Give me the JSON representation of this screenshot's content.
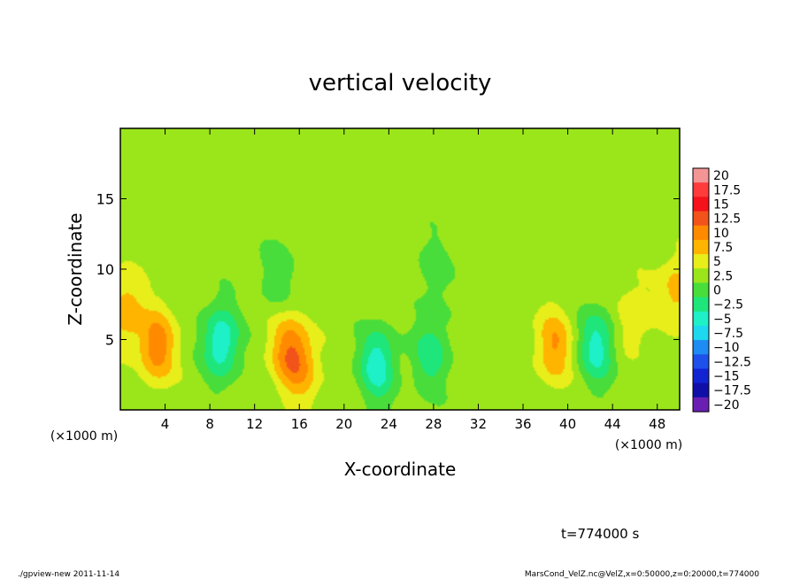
{
  "chart_data": {
    "type": "heatmap",
    "title": "vertical velocity",
    "xlabel": "X-coordinate",
    "ylabel": "Z-coordinate",
    "x_unit_left": "(×1000 m)",
    "x_unit_right": "(×1000 m)",
    "xlim": [
      0,
      50
    ],
    "ylim": [
      0,
      20
    ],
    "x_ticks": [
      "4",
      "8",
      "12",
      "16",
      "20",
      "24",
      "28",
      "32",
      "36",
      "40",
      "44",
      "48"
    ],
    "y_ticks": [
      "5",
      "10",
      "15"
    ],
    "colorbar": {
      "levels": [
        "20",
        "17.5",
        "15",
        "12.5",
        "10",
        "7.5",
        "5",
        "2.5",
        "0",
        "-2.5",
        "-5",
        "-7.5",
        "-10",
        "-12.5",
        "-15",
        "-17.5",
        "-20"
      ],
      "colors": [
        "#f39595",
        "#ff3b3b",
        "#f5121b",
        "#f2531b",
        "#ff8a00",
        "#ffb400",
        "#e8ee1a",
        "#9be61a",
        "#48dd3a",
        "#1ee67a",
        "#1ef0c8",
        "#1ed8f0",
        "#1e8cf2",
        "#1e50ea",
        "#1224d2",
        "#1010a8",
        "#6a1fb2"
      ]
    },
    "annotation_time": "t=774000 s",
    "footer_left": "./gpview-new  2011-11-14",
    "footer_right": "MarsCond_VelZ.nc@VelZ,x=0:50000,z=0:20000,t=774000",
    "features": [
      {
        "x": 0.5,
        "z": 7.0,
        "w": 5.5
      },
      {
        "x": 49.8,
        "z": 8.5,
        "w": 5.0
      },
      {
        "x": 3.3,
        "z": 4.5,
        "w": 8.0
      },
      {
        "x": 9.0,
        "z": 4.8,
        "w": -8.5
      },
      {
        "x": 15.0,
        "z": 4.3,
        "w": 7.0
      },
      {
        "x": 16.3,
        "z": 3.0,
        "w": 5.0
      },
      {
        "x": 23.0,
        "z": 3.2,
        "w": -8.0
      },
      {
        "x": 27.8,
        "z": 4.0,
        "w": -5.5
      },
      {
        "x": 38.8,
        "z": 4.5,
        "w": 6.5
      },
      {
        "x": 42.6,
        "z": 4.5,
        "w": -7.5
      },
      {
        "x": 45.8,
        "z": 6.5,
        "w": 3.5
      },
      {
        "x": 14.0,
        "z": 9.5,
        "w": -3.0
      },
      {
        "x": 28.0,
        "z": 10.0,
        "w": -2.5
      }
    ]
  }
}
